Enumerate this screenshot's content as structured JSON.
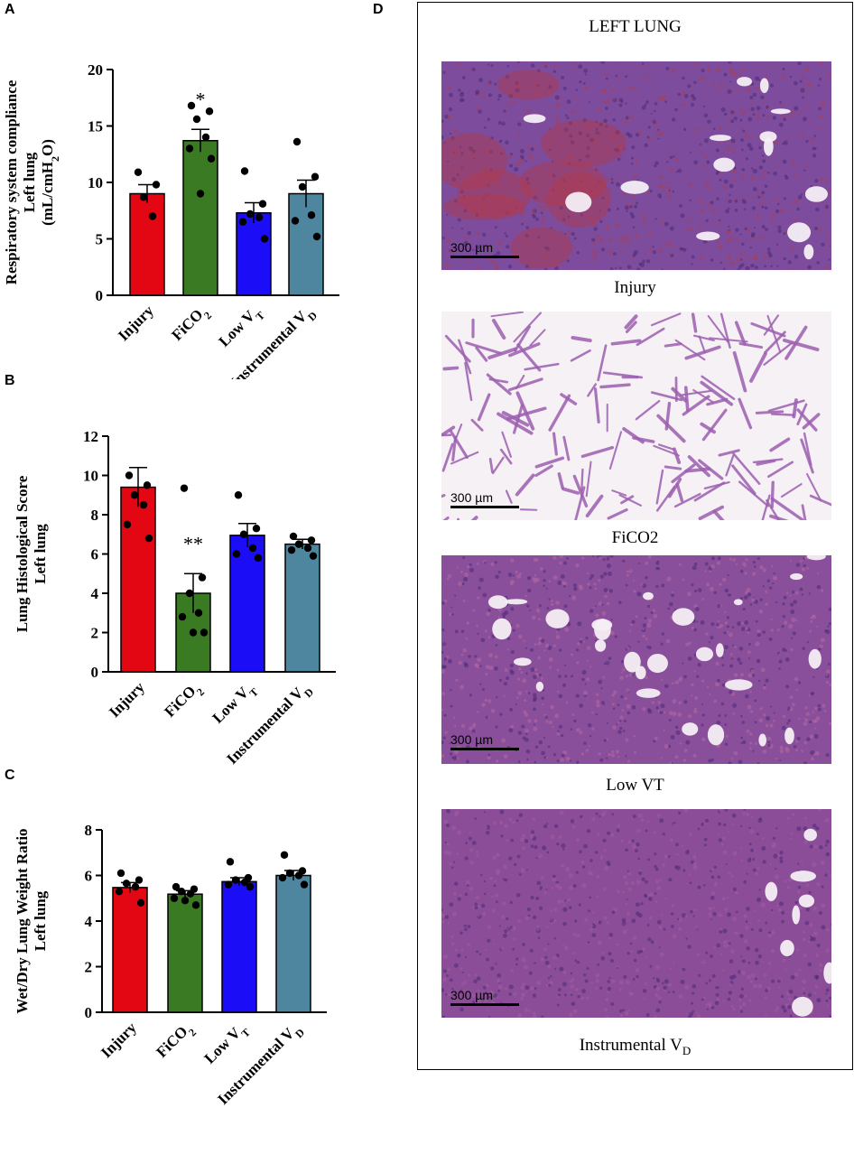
{
  "panels": {
    "a": "A",
    "b": "B",
    "c": "C",
    "d": "D"
  },
  "chart_data": [
    {
      "type": "bar",
      "panel": "A",
      "ylabel_lines": [
        "Respiratory system compliance",
        "Left lung",
        "(mL/cmH₂O)"
      ],
      "ylim": [
        0,
        20
      ],
      "yticks": [
        0,
        5,
        10,
        15,
        20
      ],
      "categories": [
        "Injury",
        "FiCO₂",
        "Low V_T",
        "Instrumental V_D"
      ],
      "values": [
        9.0,
        13.7,
        7.3,
        9.0
      ],
      "sem": [
        0.8,
        1.0,
        0.9,
        1.2
      ],
      "points": [
        [
          10.9,
          9.8,
          8.7,
          7.0
        ],
        [
          16.8,
          16.3,
          15.6,
          14.0,
          13.0,
          12.1,
          9.0
        ],
        [
          11.0,
          8.1,
          7.2,
          6.9,
          6.5,
          5.0
        ],
        [
          13.6,
          10.5,
          9.6,
          7.1,
          6.6,
          5.2
        ]
      ],
      "annotations": [
        "",
        "*",
        "",
        ""
      ],
      "colors": [
        "#e30613",
        "#3a7a23",
        "#1b0df5",
        "#4e86a0"
      ]
    },
    {
      "type": "bar",
      "panel": "B",
      "ylabel_lines": [
        "Lung Histological Score",
        "Left lung"
      ],
      "ylim": [
        0,
        12
      ],
      "yticks": [
        0,
        2,
        4,
        6,
        8,
        10,
        12
      ],
      "categories": [
        "Injury",
        "FiCO₂",
        "Low V_T",
        "Instrumental V_D"
      ],
      "values": [
        9.4,
        4.0,
        6.95,
        6.5
      ],
      "sem": [
        1.0,
        1.0,
        0.6,
        0.25
      ],
      "points": [
        [
          10.0,
          9.5,
          9.0,
          8.5,
          7.5,
          6.8
        ],
        [
          9.35,
          4.8,
          4.0,
          3.0,
          2.8,
          2.0,
          2.0
        ],
        [
          9.0,
          7.3,
          7.0,
          6.3,
          6.0,
          5.8
        ],
        [
          6.9,
          6.7,
          6.5,
          6.3,
          6.2,
          5.9
        ]
      ],
      "annotations": [
        "",
        "**",
        "",
        ""
      ],
      "colors": [
        "#e30613",
        "#3a7a23",
        "#1b0df5",
        "#4e86a0"
      ]
    },
    {
      "type": "bar",
      "panel": "C",
      "ylabel_lines": [
        "Wet/Dry Lung Weight Ratio",
        "Left lung"
      ],
      "ylim": [
        0,
        8
      ],
      "yticks": [
        0,
        2,
        4,
        6,
        8
      ],
      "categories": [
        "Injury",
        "FiCO₂",
        "Low V_T",
        "Instrumental V_D"
      ],
      "values": [
        5.47,
        5.18,
        5.73,
        6.0
      ],
      "sem": [
        0.22,
        0.15,
        0.17,
        0.22
      ],
      "points": [
        [
          6.1,
          5.8,
          5.65,
          5.5,
          5.3,
          4.8
        ],
        [
          5.5,
          5.4,
          5.3,
          5.2,
          5.0,
          4.7,
          4.9
        ],
        [
          6.6,
          5.9,
          5.8,
          5.7,
          5.6,
          5.5
        ],
        [
          6.9,
          6.2,
          6.1,
          6.0,
          5.9,
          5.6
        ]
      ],
      "annotations": [
        "",
        "",
        "",
        ""
      ],
      "colors": [
        "#e30613",
        "#3a7a23",
        "#1b0df5",
        "#4e86a0"
      ]
    }
  ],
  "micrographs": {
    "title": "LEFT LUNG",
    "scale_label": "300 µm",
    "items": [
      {
        "caption": "Injury",
        "base": "#7d4c9c",
        "tint": "#a8405a"
      },
      {
        "caption": "FiCO2",
        "base": "#f6f1f5",
        "tint": "#9c5fb0"
      },
      {
        "caption": "Low VT",
        "base": "#8a4f9b",
        "tint": "#b46aa0"
      },
      {
        "caption": "Instrumental V_D",
        "base": "#8c4d98",
        "tint": "#a05d9f"
      }
    ]
  }
}
